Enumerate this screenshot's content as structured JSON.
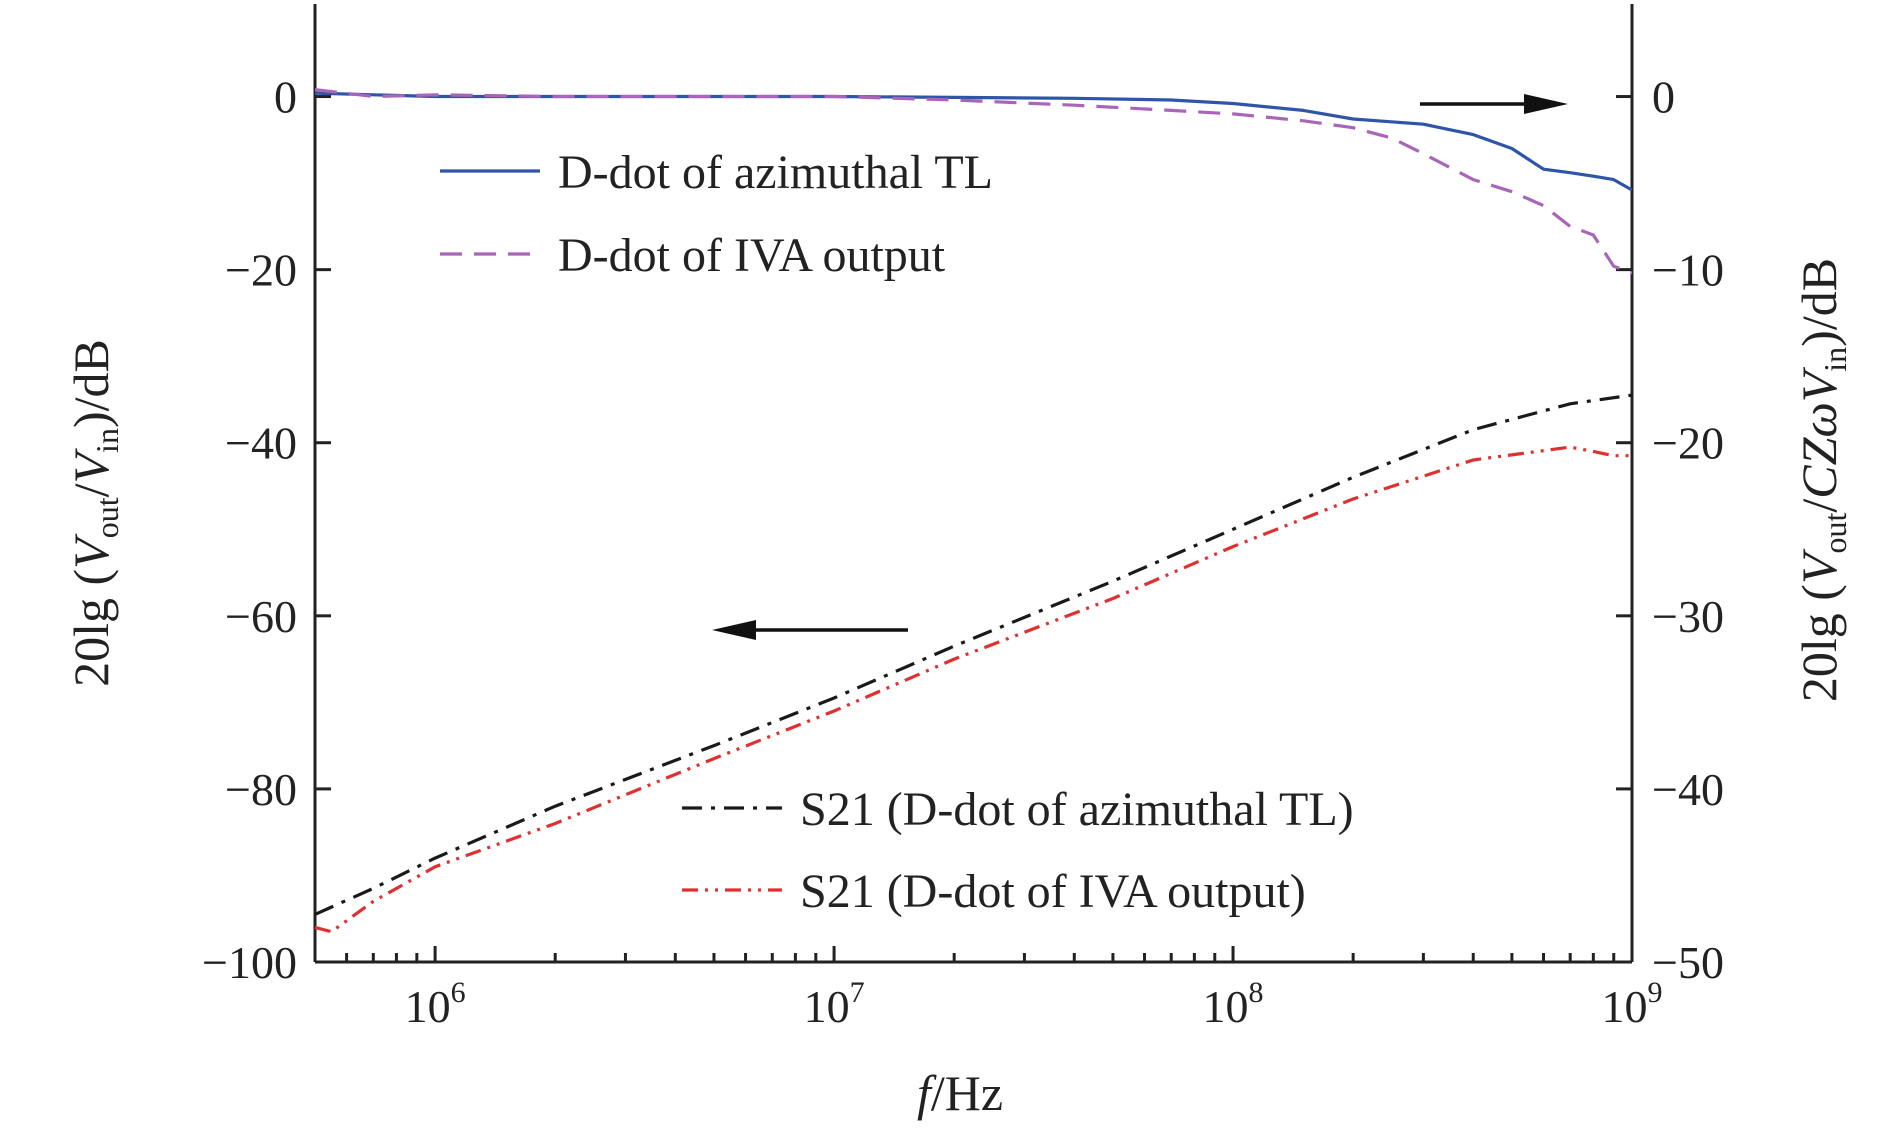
{
  "chart_data": {
    "type": "line",
    "title": "",
    "xlabel": {
      "italic": "f",
      "rest": "/Hz"
    },
    "ylabel_left": {
      "prefix": "20lg (",
      "v": "V",
      "out": "out",
      "slash": "/",
      "v2": "V",
      "in": "in",
      "suffix": ")/dB"
    },
    "ylabel_right": {
      "prefix": "20lg (",
      "v": "V",
      "out": "out",
      "slash": "/",
      "czw": "CZωV",
      "in": "in",
      "suffix": ")/dB"
    },
    "xscale": "log",
    "xlim": [
      500000,
      1000000000
    ],
    "ylim_left": [
      -100,
      10
    ],
    "ylim_right": [
      -50,
      5
    ],
    "x_ticks": [
      {
        "value": 1000000,
        "base": "10",
        "exp": "6"
      },
      {
        "value": 10000000,
        "base": "10",
        "exp": "7"
      },
      {
        "value": 100000000,
        "base": "10",
        "exp": "8"
      },
      {
        "value": 1000000000,
        "base": "10",
        "exp": "9"
      }
    ],
    "y_ticks_left": [
      {
        "value": 0,
        "label": "0"
      },
      {
        "value": -20,
        "label": "−20"
      },
      {
        "value": -40,
        "label": "−40"
      },
      {
        "value": -60,
        "label": "−60"
      },
      {
        "value": -80,
        "label": "−80"
      },
      {
        "value": -100,
        "label": "−100"
      }
    ],
    "y_ticks_right": [
      {
        "value": 0,
        "label": "0"
      },
      {
        "value": -10,
        "label": "−10"
      },
      {
        "value": -20,
        "label": "−20"
      },
      {
        "value": -30,
        "label": "−30"
      },
      {
        "value": -40,
        "label": "−40"
      },
      {
        "value": -50,
        "label": "−50"
      }
    ],
    "grid": false,
    "series": [
      {
        "name": "D-dot of azimuthal TL",
        "axis": "right",
        "color": "#2f55a6",
        "dash": "solid",
        "x": [
          500000,
          700000,
          1000000,
          2000000,
          5000000,
          10000000,
          20000000,
          40000000,
          70000000,
          100000000,
          150000000,
          200000000,
          300000000,
          400000000,
          500000000,
          600000000,
          700000000,
          800000000,
          900000000,
          1000000000
        ],
        "y": [
          0.2,
          0.1,
          0.0,
          0.0,
          0.0,
          0.0,
          -0.05,
          -0.1,
          -0.2,
          -0.4,
          -0.8,
          -1.3,
          -1.6,
          -2.2,
          -3.0,
          -4.2,
          -4.4,
          -4.6,
          -4.8,
          -5.4
        ]
      },
      {
        "name": "D-dot of IVA output",
        "axis": "right",
        "color": "#a966b8",
        "dash": "dashed",
        "x": [
          500000,
          700000,
          1000000,
          2000000,
          5000000,
          10000000,
          20000000,
          40000000,
          70000000,
          100000000,
          150000000,
          200000000,
          250000000,
          300000000,
          400000000,
          500000000,
          600000000,
          700000000,
          800000000,
          900000000,
          1000000000
        ],
        "y": [
          0.4,
          0.0,
          0.1,
          0.0,
          0.0,
          0.0,
          -0.2,
          -0.5,
          -0.8,
          -1.0,
          -1.4,
          -1.8,
          -2.4,
          -3.3,
          -4.8,
          -5.5,
          -6.3,
          -7.5,
          -8.0,
          -9.8,
          -10.2
        ]
      },
      {
        "name": "S21 (D-dot of azimuthal TL)",
        "axis": "left",
        "color": "#1a1a1a",
        "dash": "dashdot",
        "x": [
          500000,
          700000,
          1000000,
          2000000,
          5000000,
          10000000,
          20000000,
          50000000,
          100000000,
          200000000,
          400000000,
          700000000,
          1000000000
        ],
        "y": [
          -94.5,
          -91.5,
          -88,
          -82,
          -75,
          -69.5,
          -63.5,
          -56,
          -50,
          -44,
          -38.5,
          -35.5,
          -34.5
        ]
      },
      {
        "name": "S21 (D-dot of IVA output)",
        "axis": "left",
        "color": "#e03030",
        "dash": "dashdotdot",
        "x": [
          500000,
          550000,
          700000,
          1000000,
          2000000,
          5000000,
          10000000,
          20000000,
          50000000,
          100000000,
          200000000,
          400000000,
          700000000,
          800000000,
          900000000,
          1000000000
        ],
        "y": [
          -96,
          -96.5,
          -93,
          -89,
          -84,
          -76.5,
          -71,
          -65,
          -58,
          -52,
          -46.5,
          -42,
          -40.5,
          -41,
          -41.5,
          -41.5
        ]
      }
    ],
    "legend": "upper-left and lower-right",
    "annotations": [
      {
        "type": "arrow",
        "direction": "right",
        "meaning": "upper curves read on right axis"
      },
      {
        "type": "arrow",
        "direction": "left",
        "meaning": "lower curves read on left axis"
      }
    ]
  }
}
